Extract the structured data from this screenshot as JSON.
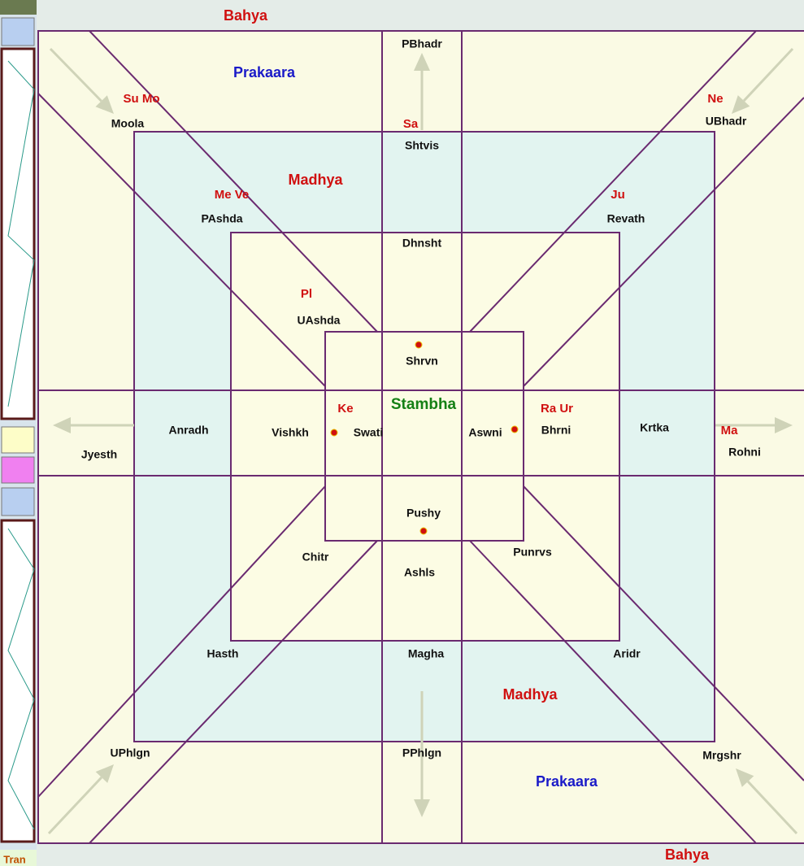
{
  "zones": {
    "bahya": [
      "Bahya",
      "Bahya"
    ],
    "prakaara": [
      "Prakaara",
      "Prakaara"
    ],
    "madhya": [
      "Madhya",
      "Madhya"
    ],
    "stambha": "Stambha"
  },
  "nakshatras": [
    "Moola",
    "PBhadr",
    "Shtvis",
    "UBhadr",
    "PAshda",
    "Dhnsht",
    "Revath",
    "UAshda",
    "Shrvn",
    "Anradh",
    "Vishkh",
    "Swati",
    "Aswni",
    "Bhrni",
    "Krtka",
    "Jyesth",
    "Rohni",
    "Pushy",
    "Chitr",
    "Ashls",
    "Punrvs",
    "Hasth",
    "Magha",
    "Aridr",
    "UPhlgn",
    "PPhlgn",
    "Mrgshr"
  ],
  "planets": [
    "Su Mo",
    "Ne",
    "Sa",
    "Me Ve",
    "Ju",
    "Pl",
    "Ke",
    "Ra Ur",
    "Ma"
  ],
  "sidebar": {
    "label": "Tran"
  }
}
